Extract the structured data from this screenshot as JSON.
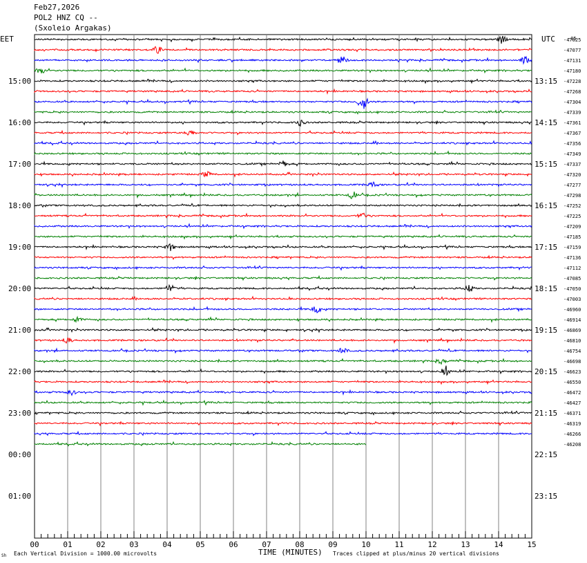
{
  "header": {
    "date": "Feb27,2026",
    "station": "POL2 HNZ CQ --",
    "location": "(Sxoleio Argakas)"
  },
  "chart_data": {
    "type": "line",
    "left_timezone": "EET",
    "right_timezone": "UTC",
    "left_hour_labels": [
      "15:00",
      "16:00",
      "17:00",
      "18:00",
      "19:00",
      "20:00",
      "21:00",
      "22:00",
      "23:00",
      "00:00",
      "01:00"
    ],
    "right_hour_labels": [
      "13:15",
      "14:15",
      "15:15",
      "16:15",
      "17:15",
      "18:15",
      "19:15",
      "20:15",
      "21:15",
      "22:15",
      "23:15"
    ],
    "x_ticks": [
      "00",
      "01",
      "02",
      "03",
      "04",
      "05",
      "06",
      "07",
      "08",
      "09",
      "10",
      "11",
      "12",
      "13",
      "14",
      "15"
    ],
    "xlabel": "TIME (MINUTES)",
    "xlim": [
      0,
      15
    ],
    "trace_colors": [
      "#000000",
      "#ff0000",
      "#0000ff",
      "#008000"
    ],
    "trace_offsets": [
      "-47025",
      "-47077",
      "-47131",
      "-47180",
      "-47228",
      "-47268",
      "-47304",
      "-47339",
      "-47361",
      "-47367",
      "-47356",
      "-47349",
      "-47337",
      "-47320",
      "-47277",
      "-47298",
      "-47252",
      "-47225",
      "-47209",
      "-47185",
      "-47159",
      "-47136",
      "-47112",
      "-47085",
      "-47050",
      "-47003",
      "-46960",
      "-46914",
      "-46869",
      "-46810",
      "-46754",
      "-46698",
      "-46623",
      "-46550",
      "-46472",
      "-46427",
      "-46371",
      "-46319",
      "-46266",
      "-46208"
    ],
    "last_trace_end_minute": 10,
    "events": [
      {
        "trace": 0,
        "minute": 14.1,
        "amp": 6
      },
      {
        "trace": 1,
        "minute": 3.7,
        "amp": 5
      },
      {
        "trace": 2,
        "minute": 9.3,
        "amp": 5
      },
      {
        "trace": 2,
        "minute": 14.8,
        "amp": 5
      },
      {
        "trace": 3,
        "minute": 0.2,
        "amp": 5
      },
      {
        "trace": 6,
        "minute": 9.9,
        "amp": 12
      },
      {
        "trace": 8,
        "minute": 8.0,
        "amp": 5
      },
      {
        "trace": 9,
        "minute": 4.7,
        "amp": 4
      },
      {
        "trace": 12,
        "minute": 7.5,
        "amp": 4
      },
      {
        "trace": 13,
        "minute": 5.2,
        "amp": 4
      },
      {
        "trace": 14,
        "minute": 10.2,
        "amp": 4
      },
      {
        "trace": 15,
        "minute": 9.6,
        "amp": 5
      },
      {
        "trace": 17,
        "minute": 9.9,
        "amp": 4
      },
      {
        "trace": 20,
        "minute": 4.1,
        "amp": 5
      },
      {
        "trace": 24,
        "minute": 4.1,
        "amp": 5
      },
      {
        "trace": 24,
        "minute": 13.1,
        "amp": 5
      },
      {
        "trace": 26,
        "minute": 8.5,
        "amp": 6
      },
      {
        "trace": 27,
        "minute": 1.3,
        "amp": 4
      },
      {
        "trace": 29,
        "minute": 1.0,
        "amp": 4
      },
      {
        "trace": 30,
        "minute": 9.3,
        "amp": 4
      },
      {
        "trace": 31,
        "minute": 12.3,
        "amp": 4
      },
      {
        "trace": 32,
        "minute": 12.4,
        "amp": 6
      },
      {
        "trace": 34,
        "minute": 1.1,
        "amp": 4
      }
    ]
  },
  "footer": {
    "left_note": "Each Vertical Division = 1000.00 microvolts",
    "right_note": "Traces clipped at plus/minus 20 vertical divisions",
    "corner_mark": "Sh",
    "top_right_mark": "-05"
  }
}
